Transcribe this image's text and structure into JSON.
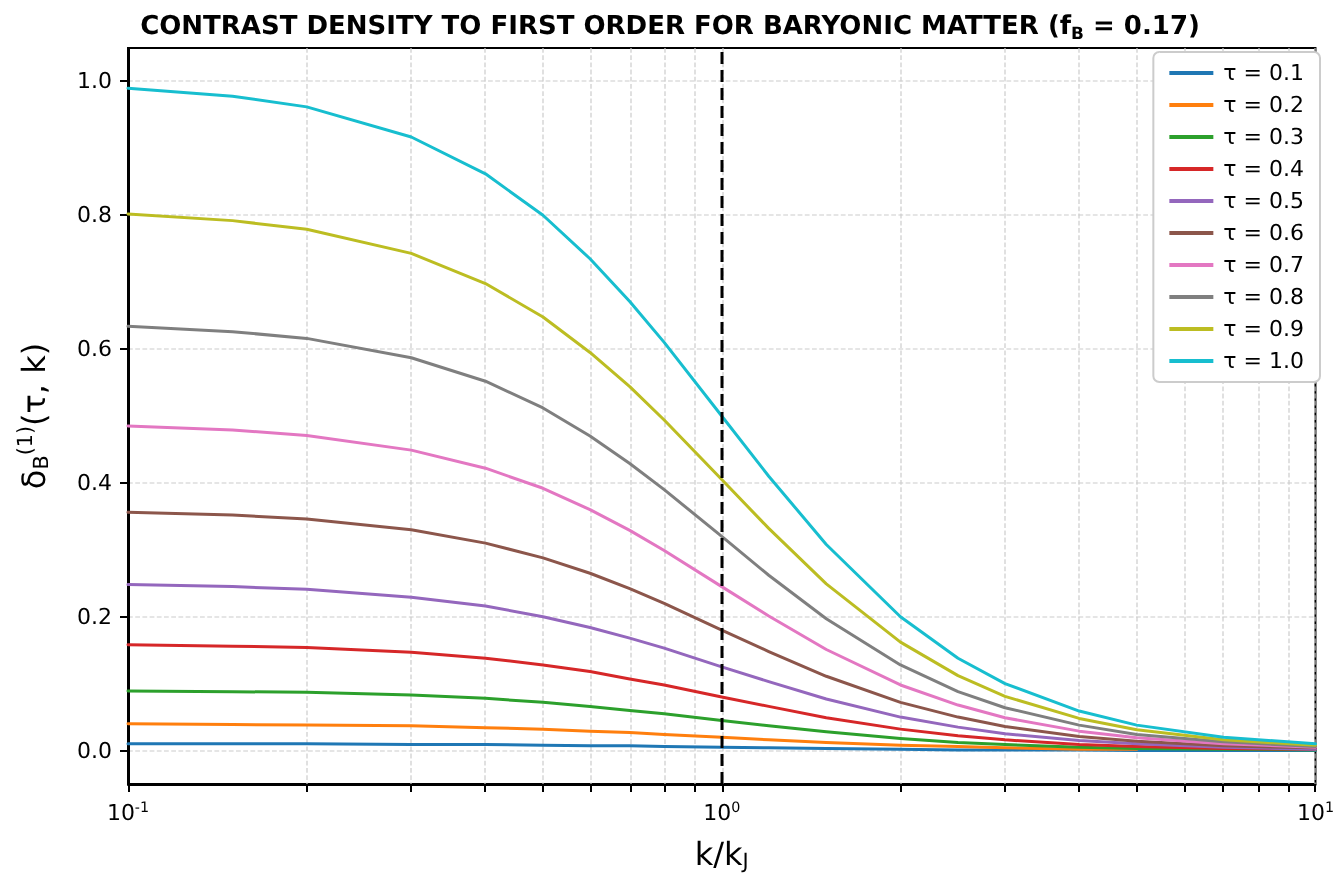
{
  "chart_data": {
    "type": "line",
    "title": "CONTRAST DENSITY TO FIRST ORDER FOR BARYONIC MATTER (f$_{B}$ = 0.17)",
    "xlabel": "k/k$_{J}$",
    "ylabel": "δ$_{B}$$^{(1)}$(τ, k)",
    "x": [
      0.1,
      0.15,
      0.2,
      0.3,
      0.4,
      0.5,
      0.6,
      0.7,
      0.8,
      1,
      1.2,
      1.5,
      2,
      2.5,
      3,
      4,
      5,
      7,
      10
    ],
    "series": [
      {
        "name": "τ = 0.1",
        "color": "#1f77b4",
        "values": [
          0.01,
          0.01,
          0.01,
          0.009,
          0.009,
          0.008,
          0.007,
          0.007,
          0.006,
          0.005,
          0.004,
          0.003,
          0.002,
          0.001,
          0.001,
          0.001,
          0,
          0,
          0
        ]
      },
      {
        "name": "τ = 0.2",
        "color": "#ff7f0e",
        "values": [
          0.04,
          0.039,
          0.038,
          0.037,
          0.034,
          0.032,
          0.029,
          0.027,
          0.024,
          0.02,
          0.016,
          0.012,
          0.008,
          0.006,
          0.004,
          0.002,
          0.002,
          null,
          null
        ]
      },
      {
        "name": "τ = 0.3",
        "color": "#2ca02c",
        "values": [
          0.089,
          0.088,
          0.087,
          0.083,
          0.078,
          0.072,
          0.066,
          0.06,
          0.055,
          0.045,
          0.037,
          0.028,
          0.018,
          0.012,
          0.009,
          0.005,
          0.003,
          0.002,
          0.001
        ]
      },
      {
        "name": "τ = 0.4",
        "color": "#d62728",
        "values": [
          0.158,
          0.156,
          0.154,
          0.147,
          0.138,
          0.128,
          0.118,
          0.107,
          0.098,
          0.08,
          0.066,
          0.049,
          0.032,
          0.022,
          0.016,
          0.009,
          0.006,
          0.003,
          0.002
        ]
      },
      {
        "name": "τ = 0.5",
        "color": "#9467bd",
        "values": [
          0.248,
          0.245,
          0.241,
          0.229,
          0.216,
          0.2,
          0.184,
          0.168,
          0.153,
          0.125,
          0.103,
          0.077,
          0.05,
          0.035,
          0.025,
          0.015,
          0.01,
          0.005,
          0.002
        ]
      },
      {
        "name": "τ = 0.6",
        "color": "#8c564b",
        "values": [
          0.356,
          0.352,
          0.346,
          0.33,
          0.31,
          0.288,
          0.265,
          0.242,
          0.22,
          0.18,
          0.148,
          0.111,
          0.072,
          0.05,
          0.036,
          0.021,
          0.014,
          0.007,
          0.004
        ]
      },
      {
        "name": "τ = 0.7",
        "color": "#e377c2",
        "values": [
          0.485,
          0.479,
          0.471,
          0.449,
          0.422,
          0.392,
          0.36,
          0.329,
          0.299,
          0.245,
          0.201,
          0.151,
          0.098,
          0.068,
          0.049,
          0.029,
          0.019,
          0.01,
          0.005
        ]
      },
      {
        "name": "τ = 0.8",
        "color": "#7f7f7f",
        "values": [
          0.634,
          0.626,
          0.616,
          0.587,
          0.552,
          0.512,
          0.47,
          0.429,
          0.39,
          0.32,
          0.262,
          0.197,
          0.128,
          0.088,
          0.064,
          0.038,
          0.024,
          0.013,
          0.006
        ]
      },
      {
        "name": "τ = 0.9",
        "color": "#bcbd22",
        "values": [
          0.802,
          0.792,
          0.779,
          0.743,
          0.698,
          0.648,
          0.595,
          0.544,
          0.494,
          0.405,
          0.332,
          0.249,
          0.162,
          0.112,
          0.081,
          0.048,
          0.031,
          0.016,
          0.008
        ]
      },
      {
        "name": "τ = 1.0",
        "color": "#17becf",
        "values": [
          0.99,
          0.978,
          0.962,
          0.917,
          0.862,
          0.8,
          0.735,
          0.671,
          0.61,
          0.5,
          0.41,
          0.308,
          0.2,
          0.138,
          0.1,
          0.059,
          0.038,
          0.02,
          0.01
        ]
      }
    ],
    "log": "x",
    "xlim": [
      0.1,
      10
    ],
    "xticks": [
      {
        "value": 0.1,
        "label": "10$^{-1}$"
      },
      {
        "value": 0.2,
        "label": null
      },
      {
        "value": 0.3,
        "label": null
      },
      {
        "value": 0.4,
        "label": null
      },
      {
        "value": 0.5,
        "label": null
      },
      {
        "value": 0.6,
        "label": null
      },
      {
        "value": 0.7,
        "label": null
      },
      {
        "value": 0.8,
        "label": null
      },
      {
        "value": 0.9,
        "label": null
      },
      {
        "value": 1,
        "label": "10$^{0}$"
      },
      {
        "value": 2,
        "label": null
      },
      {
        "value": 3,
        "label": null
      },
      {
        "value": 4,
        "label": null
      },
      {
        "value": 5,
        "label": null
      },
      {
        "value": 6,
        "label": null
      },
      {
        "value": 7,
        "label": null
      },
      {
        "value": 8,
        "label": null
      },
      {
        "value": 9,
        "label": null
      },
      {
        "value": 10,
        "label": "10$^{1}$"
      }
    ],
    "ylim": [
      -0.05,
      1.05
    ],
    "yticks": [
      {
        "value": 0,
        "label": "0.0"
      },
      {
        "value": 0.2,
        "label": "0.2"
      },
      {
        "value": 0.4,
        "label": "0.4"
      },
      {
        "value": 0.6,
        "label": "0.6"
      },
      {
        "value": 0.8,
        "label": "0.8"
      },
      {
        "value": 1,
        "label": "1.0"
      }
    ],
    "ref_lines": [
      {
        "axis": "x",
        "value": 1,
        "color": "#000000",
        "line_style": "dashed"
      }
    ],
    "grid": true,
    "legend": "top right",
    "marker": "none",
    "line_style": "solid"
  }
}
